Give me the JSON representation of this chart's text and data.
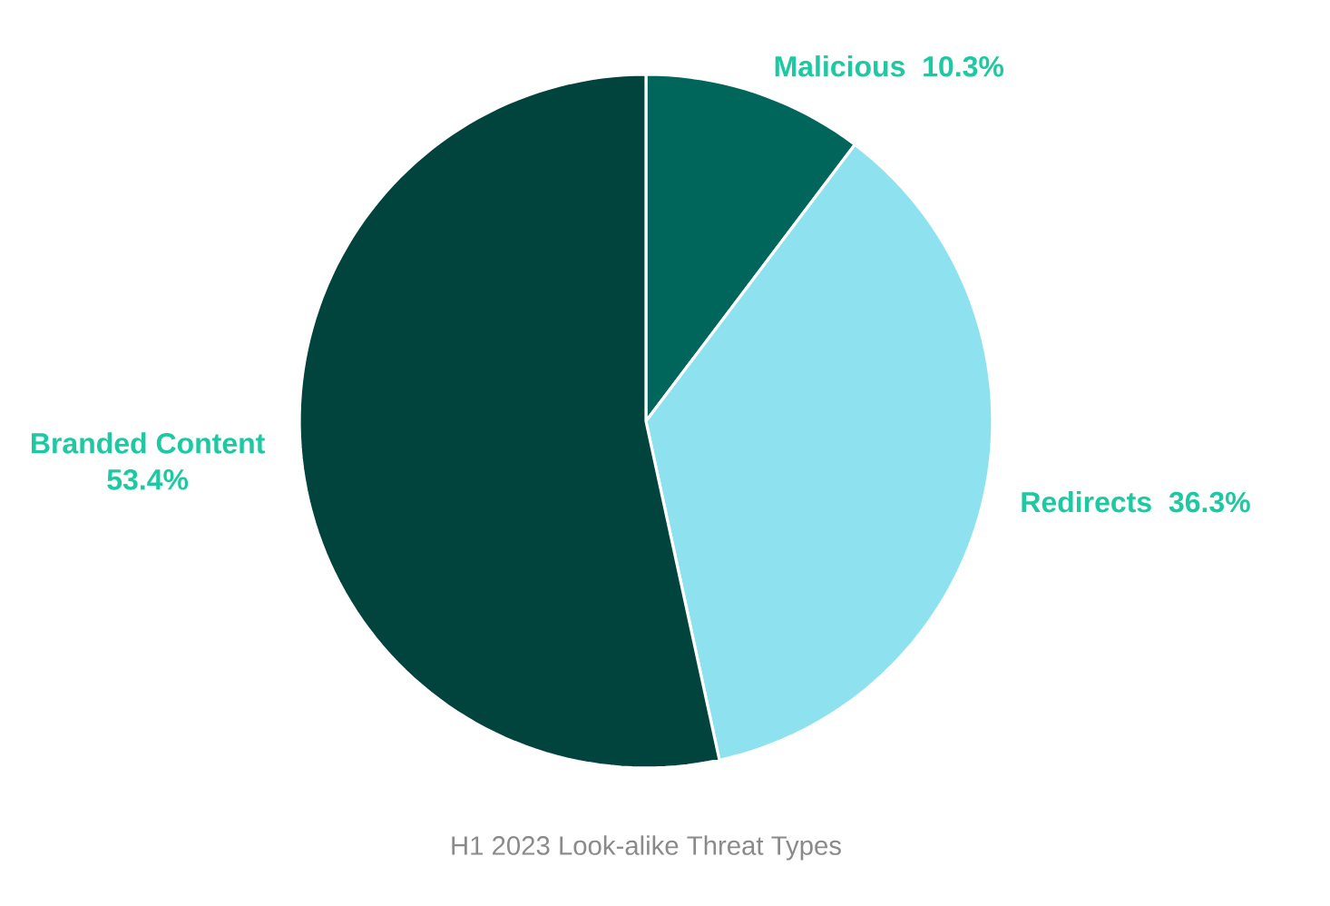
{
  "chart_data": {
    "type": "pie",
    "title": "H1 2023 Look-alike Threat Types",
    "categories": [
      "Malicious",
      "Redirects",
      "Branded Content"
    ],
    "values": [
      10.3,
      36.3,
      53.4
    ],
    "value_labels": [
      "10.3%",
      "36.3%",
      "53.4%"
    ],
    "colors": [
      "#00655a",
      "#8ee2f0",
      "#01443d"
    ]
  }
}
